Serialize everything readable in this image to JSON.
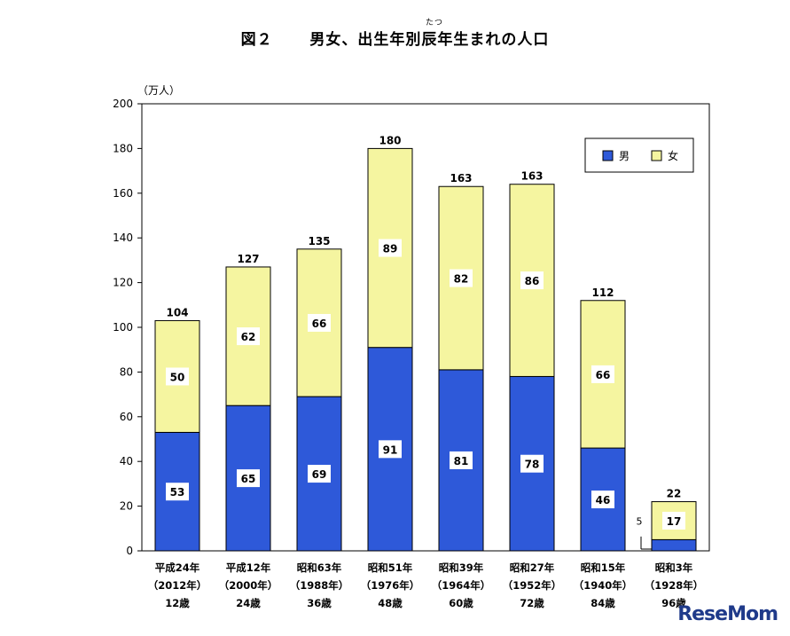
{
  "title_prefix": "図２",
  "title_text": "男女、出生年別辰年生まれの人口",
  "title_ruby": "たつ",
  "watermark": "ReseMom",
  "chart_data": {
    "type": "bar",
    "stacked": true,
    "title": "図２　男女、出生年別辰年生まれの人口",
    "unit_label": "（万人）",
    "ylim": [
      0,
      200
    ],
    "yticks": [
      0,
      20,
      40,
      60,
      80,
      100,
      120,
      140,
      160,
      180,
      200
    ],
    "categories": [
      {
        "era": "平成24年",
        "year": "（2012年）",
        "age": "12歳"
      },
      {
        "era": "平成12年",
        "year": "（2000年）",
        "age": "24歳"
      },
      {
        "era": "昭和63年",
        "year": "（1988年）",
        "age": "36歳"
      },
      {
        "era": "昭和51年",
        "year": "（1976年）",
        "age": "48歳"
      },
      {
        "era": "昭和39年",
        "year": "（1964年）",
        "age": "60歳"
      },
      {
        "era": "昭和27年",
        "year": "（1952年）",
        "age": "72歳"
      },
      {
        "era": "昭和15年",
        "year": "（1940年）",
        "age": "84歳"
      },
      {
        "era": "昭和3年",
        "year": "（1928年）",
        "age": "96歳"
      }
    ],
    "series": [
      {
        "name": "男",
        "color": "#2e59d9",
        "values": [
          53,
          65,
          69,
          91,
          81,
          78,
          46,
          5
        ]
      },
      {
        "name": "女",
        "color": "#f5f5a0",
        "values": [
          50,
          62,
          66,
          89,
          82,
          86,
          66,
          17
        ]
      }
    ],
    "totals": [
      104,
      127,
      135,
      180,
      163,
      163,
      112,
      22
    ],
    "legend_position": "top-right",
    "grid": false
  }
}
